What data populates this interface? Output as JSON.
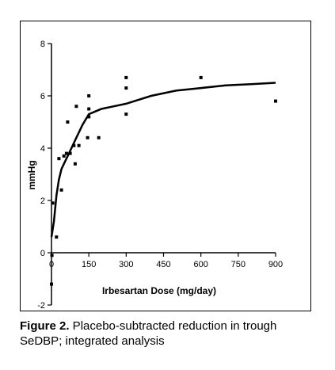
{
  "chart_data": {
    "type": "scatter",
    "title": "",
    "xlabel": "Irbesartan Dose (mg/day)",
    "ylabel": "mmHg",
    "xlim": [
      0,
      930
    ],
    "ylim": [
      -2,
      8
    ],
    "xticks": [
      0,
      150,
      300,
      450,
      600,
      750,
      900
    ],
    "yticks": [
      -2,
      0,
      2,
      4,
      6,
      8
    ],
    "grid": false,
    "legend": "none",
    "colors": {
      "points": "#000000",
      "curve": "#000000"
    },
    "points": [
      {
        "x": 0,
        "y": -1.2
      },
      {
        "x": 2,
        "y": -0.1
      },
      {
        "x": 5,
        "y": 1.9
      },
      {
        "x": 20,
        "y": 0.6
      },
      {
        "x": 30,
        "y": 3.6
      },
      {
        "x": 40,
        "y": 2.4
      },
      {
        "x": 50,
        "y": 3.7
      },
      {
        "x": 60,
        "y": 3.8
      },
      {
        "x": 65,
        "y": 5.0
      },
      {
        "x": 75,
        "y": 3.8
      },
      {
        "x": 90,
        "y": 4.1
      },
      {
        "x": 95,
        "y": 3.4
      },
      {
        "x": 100,
        "y": 5.6
      },
      {
        "x": 110,
        "y": 4.1
      },
      {
        "x": 145,
        "y": 4.4
      },
      {
        "x": 150,
        "y": 5.2
      },
      {
        "x": 150,
        "y": 5.5
      },
      {
        "x": 150,
        "y": 6.0
      },
      {
        "x": 190,
        "y": 4.4
      },
      {
        "x": 300,
        "y": 5.3
      },
      {
        "x": 300,
        "y": 6.3
      },
      {
        "x": 300,
        "y": 6.7
      },
      {
        "x": 600,
        "y": 6.7
      },
      {
        "x": 900,
        "y": 5.8
      }
    ],
    "fit_curve": {
      "x": [
        0,
        10,
        20,
        30,
        40,
        50,
        60,
        80,
        100,
        125,
        150,
        200,
        250,
        300,
        400,
        500,
        600,
        700,
        800,
        900
      ],
      "y": [
        0.6,
        1.2,
        2.2,
        2.8,
        3.2,
        3.4,
        3.6,
        4.0,
        4.4,
        4.9,
        5.3,
        5.5,
        5.6,
        5.7,
        6.0,
        6.2,
        6.3,
        6.4,
        6.45,
        6.5
      ]
    }
  },
  "caption": {
    "label": "Figure 2.",
    "text": " Placebo-subtracted reduction in trough SeDBP; integrated analysis"
  }
}
